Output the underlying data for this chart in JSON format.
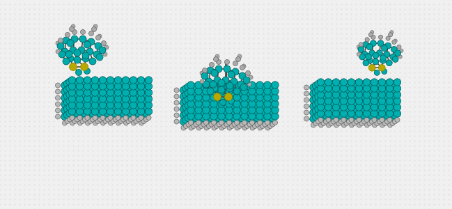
{
  "bg_color": "#f0f0f0",
  "dot_color": "#d8d8d8",
  "teal": "#00aaaa",
  "gray_atom": "#909090",
  "yellow": "#b8a800",
  "white_atom": "#d0d0d0",
  "bond_color": "#888888",
  "fig_width": 6.49,
  "fig_height": 3.0,
  "dpi": 100,
  "surface_teal": "#00b0b0",
  "surface_edge": "#007777",
  "h_atom_color": "#b8b8b8",
  "mol_teal": "#00b8b8",
  "mol_gray": "#aaaaaa"
}
